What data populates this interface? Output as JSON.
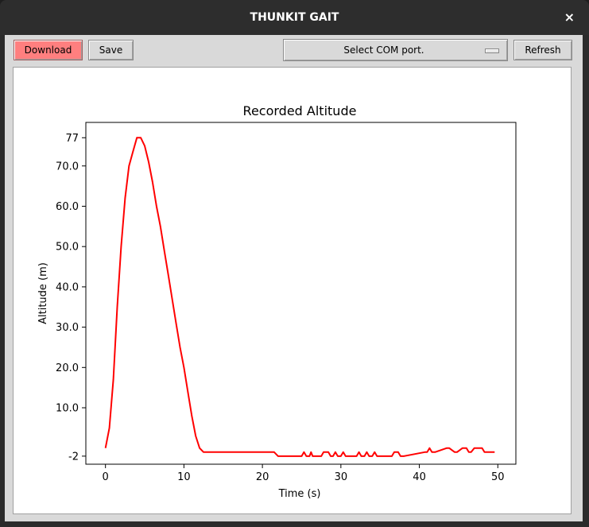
{
  "window": {
    "title": "THUNKIT GAIT",
    "close_glyph": "×"
  },
  "toolbar": {
    "download_label": "Download",
    "save_label": "Save",
    "com_select_value": "Select COM port.",
    "refresh_label": "Refresh",
    "download_color": "#ff7f7f"
  },
  "chart_data": {
    "type": "line",
    "title": "Recorded Altitude",
    "xlabel": "Time (s)",
    "ylabel": "Altitude (m)",
    "xlim": [
      -2.5,
      52.3
    ],
    "ylim": [
      -4,
      80.8
    ],
    "xticks": [
      0,
      10,
      20,
      30,
      40,
      50
    ],
    "xtick_labels": [
      "0",
      "10",
      "20",
      "30",
      "40",
      "50"
    ],
    "yticks": [
      -2,
      10,
      20,
      30,
      40,
      50,
      60,
      70,
      77
    ],
    "ytick_labels": [
      "-2",
      "10.0",
      "20.0",
      "30.0",
      "40.0",
      "50.0",
      "60.0",
      "70.0",
      "77"
    ],
    "grid": false,
    "series": [
      {
        "color": "#ff0000",
        "x": [
          0,
          0.5,
          1,
          1.5,
          2,
          2.5,
          3,
          3.5,
          4,
          4.5,
          5,
          5.5,
          6,
          6.5,
          7,
          7.5,
          8,
          8.5,
          9,
          9.5,
          10,
          10.5,
          11,
          11.5,
          12,
          12.5,
          13,
          13.5,
          14,
          14.5,
          15,
          15.5,
          16,
          18,
          20,
          21.5,
          22,
          25,
          25.3,
          25.6,
          26,
          26.2,
          26.4,
          27.5,
          27.8,
          28.4,
          28.7,
          29,
          29.3,
          29.6,
          30,
          30.3,
          30.6,
          32,
          32.3,
          32.6,
          33,
          33.3,
          33.6,
          34,
          34.3,
          34.6,
          36.5,
          36.8,
          37.3,
          37.6,
          38,
          40.7,
          41,
          41.3,
          41.6,
          42,
          43.5,
          43.8,
          44.5,
          44.8,
          45.5,
          46,
          46.3,
          46.6,
          47,
          47.3,
          48,
          48.3,
          49,
          49.6
        ],
        "y": [
          0,
          5,
          17,
          35,
          50,
          62,
          70,
          73.5,
          77,
          77,
          75,
          71,
          66,
          60,
          55,
          49,
          43,
          37,
          31,
          25,
          20,
          14,
          8,
          3,
          0,
          -1,
          -1,
          -1,
          -1,
          -1,
          -1,
          -1,
          -1,
          -1,
          -1,
          -1,
          -2,
          -2,
          -1,
          -2,
          -2,
          -1,
          -2,
          -2,
          -1,
          -1,
          -2,
          -2,
          -1,
          -2,
          -2,
          -1,
          -2,
          -2,
          -1,
          -2,
          -2,
          -1,
          -2,
          -2,
          -1,
          -2,
          -2,
          -1,
          -1,
          -2,
          -2,
          -1,
          -1,
          0,
          -1,
          -1,
          0,
          0,
          -1,
          -1,
          0,
          0,
          -1,
          -1,
          0,
          0,
          0,
          -1,
          -1,
          -1
        ]
      }
    ]
  }
}
